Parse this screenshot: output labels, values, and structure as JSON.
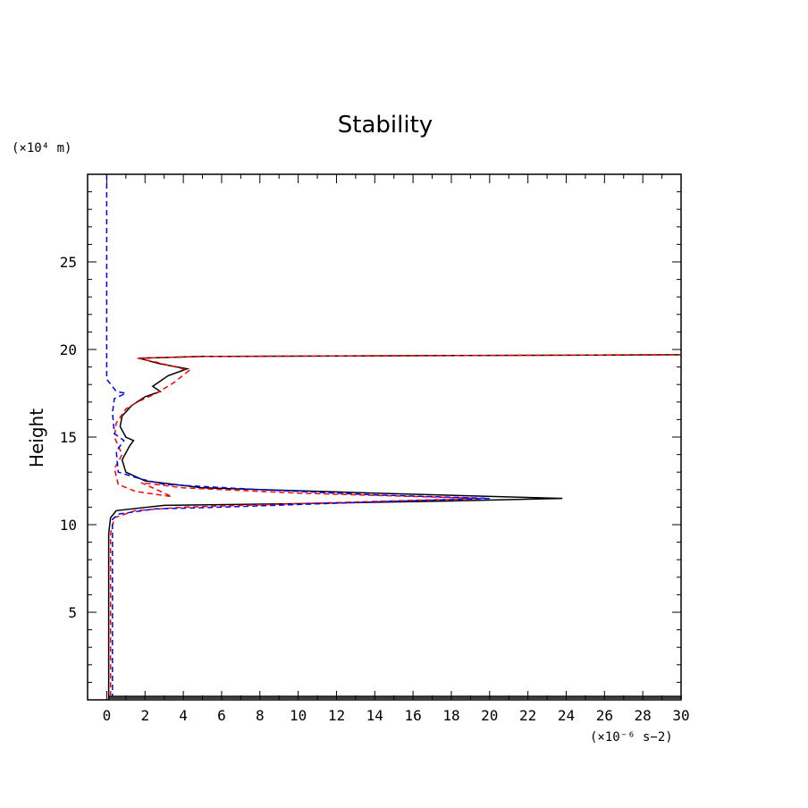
{
  "chart_data": {
    "type": "line",
    "title": "Stability",
    "ylabel": "Height",
    "yunits": "(×10⁴ m)",
    "xunits": "(×10⁻⁶ s−2)",
    "xlim": [
      -1,
      30
    ],
    "ylim": [
      0,
      30
    ],
    "xticks": [
      "0",
      "2",
      "4",
      "6",
      "8",
      "10",
      "12",
      "14",
      "16",
      "18",
      "20",
      "22",
      "24",
      "26",
      "28",
      "30"
    ],
    "yticks": [
      "5",
      "10",
      "15",
      "20",
      "25"
    ],
    "series": [
      {
        "color": "#000000",
        "dash": "solid",
        "points": [
          [
            0.1,
            0
          ],
          [
            0.1,
            0.2
          ],
          [
            30,
            0.2
          ],
          [
            30,
            0.1
          ],
          [
            0.1,
            0.1
          ],
          [
            0.1,
            9.5
          ],
          [
            0.2,
            10.4
          ],
          [
            0.5,
            10.8
          ],
          [
            3,
            11.1
          ],
          [
            10,
            11.2
          ],
          [
            18,
            11.35
          ],
          [
            23.8,
            11.5
          ],
          [
            14,
            11.8
          ],
          [
            5,
            12.1
          ],
          [
            2,
            12.5
          ],
          [
            1,
            13
          ],
          [
            0.8,
            13.7
          ],
          [
            1.2,
            14.5
          ],
          [
            1.4,
            14.8
          ],
          [
            1.0,
            15.0
          ],
          [
            0.7,
            15.6
          ],
          [
            0.8,
            16.2
          ],
          [
            1.3,
            16.8
          ],
          [
            2.0,
            17.3
          ],
          [
            2.8,
            17.6
          ],
          [
            2.4,
            17.9
          ],
          [
            3.2,
            18.5
          ],
          [
            4.2,
            18.9
          ],
          [
            2.7,
            19.2
          ],
          [
            1.7,
            19.5
          ],
          [
            5,
            19.6
          ],
          [
            30,
            19.7
          ]
        ]
      },
      {
        "color": "#ff0000",
        "dash": "dashed",
        "points": [
          [
            0.2,
            0.2
          ],
          [
            0.2,
            9.5
          ],
          [
            0.4,
            10.4
          ],
          [
            1.5,
            10.8
          ],
          [
            4,
            11.0
          ],
          [
            10,
            11.2
          ],
          [
            19.5,
            11.5
          ],
          [
            10,
            11.8
          ],
          [
            4,
            12.1
          ],
          [
            1.8,
            12.4
          ],
          [
            3.4,
            11.6
          ],
          [
            1.5,
            11.9
          ],
          [
            0.6,
            12.3
          ],
          [
            0.4,
            13.2
          ],
          [
            0.8,
            14.0
          ],
          [
            0.4,
            15.0
          ],
          [
            0.5,
            15.8
          ],
          [
            1.0,
            16.6
          ],
          [
            1.6,
            17.0
          ],
          [
            2.6,
            17.5
          ],
          [
            3.5,
            18.1
          ],
          [
            4.3,
            18.8
          ],
          [
            2.5,
            19.3
          ],
          [
            1.6,
            19.5
          ],
          [
            5,
            19.6
          ],
          [
            30,
            19.7
          ]
        ]
      },
      {
        "color": "#0000ff",
        "dash": "dashed",
        "points": [
          [
            0,
            30
          ],
          [
            0,
            18.3
          ],
          [
            0.5,
            17.6
          ],
          [
            1.0,
            17.5
          ],
          [
            0.4,
            17.2
          ],
          [
            0.3,
            16.4
          ],
          [
            0.4,
            15.2
          ],
          [
            0.9,
            14.8
          ],
          [
            0.5,
            14.2
          ],
          [
            0.6,
            13.0
          ],
          [
            1.8,
            12.6
          ],
          [
            3,
            12.3
          ],
          [
            8,
            12.0
          ],
          [
            14,
            11.7
          ],
          [
            20,
            11.5
          ],
          [
            14,
            11.3
          ],
          [
            6,
            11.0
          ],
          [
            2.5,
            10.9
          ],
          [
            0.6,
            10.6
          ],
          [
            0.3,
            10.3
          ],
          [
            0.3,
            0.2
          ]
        ]
      }
    ]
  }
}
